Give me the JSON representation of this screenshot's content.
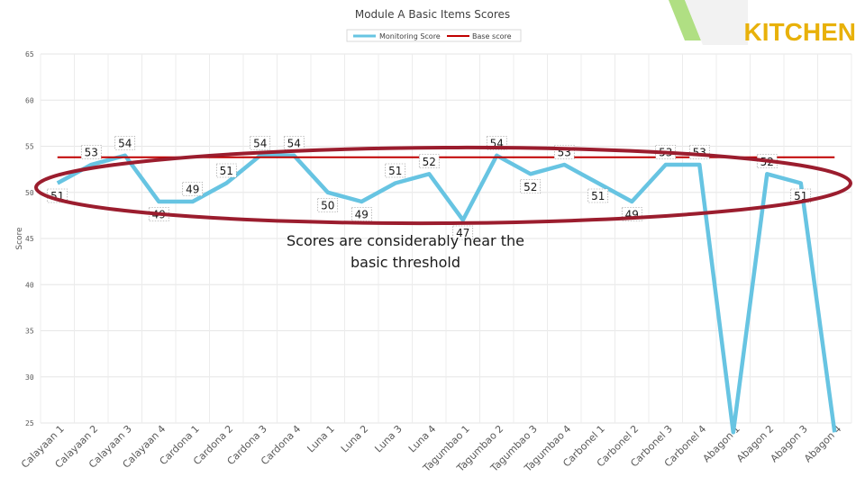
{
  "header": {
    "title": "Module A Basic Items Scores",
    "brand": "KITCHEN"
  },
  "colors": {
    "series": "#67c4e2",
    "threshold": "#c00000",
    "ellipse": "#9b1d2e",
    "accent_green": "#8fd14f",
    "brand": "#e8b10a"
  },
  "legend": {
    "position": "top-center",
    "items": [
      {
        "label": "Monitoring Score",
        "color": "#67c4e2"
      },
      {
        "label": "Base score",
        "color": "#c00000"
      }
    ]
  },
  "annotation": {
    "lines": [
      "Scores are considerably near the",
      "basic threshold"
    ]
  },
  "chart_data": {
    "type": "line",
    "title": "Module A Basic Items Scores",
    "xlabel": "",
    "ylabel": "Score",
    "ylim": [
      25,
      65
    ],
    "yticks": [
      25,
      30,
      35,
      40,
      45,
      50,
      55,
      60,
      65
    ],
    "grid": true,
    "categories": [
      "Calayaan 1",
      "Calayaan 2",
      "Calayaan 3",
      "Calayaan 4",
      "Cardona 1",
      "Cardona 2",
      "Cardona 3",
      "Cardona 4",
      "Luna 1",
      "Luna 2",
      "Luna 3",
      "Luna 4",
      "Tagumbao 1",
      "Tagumbao 2",
      "Tagumbao 3",
      "Tagumbao 4",
      "Carbonel 1",
      "Carbonel 2",
      "Carbonel 3",
      "Carbonel 4",
      "Abagon 1",
      "Abagon 2",
      "Abagon 3",
      "Abagon 4"
    ],
    "series": [
      {
        "name": "Monitoring Score",
        "values": [
          51,
          53,
          54,
          49,
          49,
          51,
          54,
          54,
          50,
          49,
          51,
          52,
          47,
          54,
          52,
          53,
          51,
          49,
          53,
          53,
          24,
          52,
          51,
          24
        ],
        "data_labels": [
          "51",
          "53",
          "54",
          "49",
          "49",
          "51",
          "54",
          "54",
          "50",
          "49",
          "51",
          "52",
          "47",
          "54",
          "52",
          "53",
          "51",
          "49",
          "53",
          "53",
          "",
          "52",
          "51",
          ""
        ]
      },
      {
        "name": "Base score",
        "values": [
          53.8,
          53.8,
          53.8,
          53.8,
          53.8,
          53.8,
          53.8,
          53.8,
          53.8,
          53.8,
          53.8,
          53.8,
          53.8,
          53.8,
          53.8,
          53.8,
          53.8,
          53.8,
          53.8,
          53.8,
          53.8,
          53.8,
          53.8,
          53.8
        ]
      }
    ]
  }
}
